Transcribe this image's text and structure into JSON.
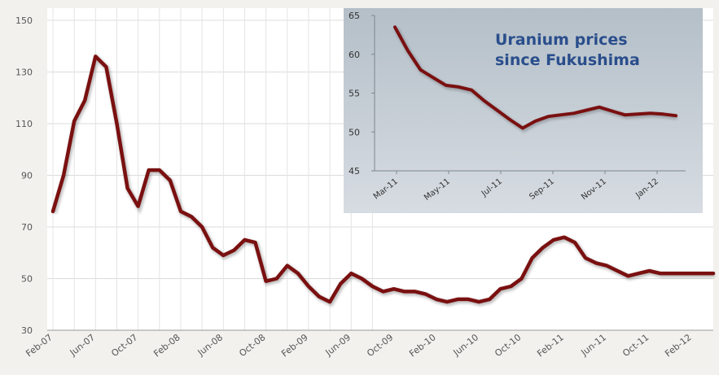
{
  "chart_data": [
    {
      "type": "line",
      "title": "",
      "xlabel": "",
      "ylabel": "",
      "ylim": [
        30,
        150
      ],
      "y_ticks": [
        30,
        50,
        70,
        90,
        110,
        130,
        150
      ],
      "x_tick_labels": [
        "Feb-07",
        "Jun-07",
        "Oct-07",
        "Feb-08",
        "Jun-08",
        "Oct-08",
        "Feb-09",
        "Jun-09",
        "Oct-09",
        "Feb-10",
        "Jun-10",
        "Oct-10",
        "Feb-11",
        "Jun-11",
        "Oct-11",
        "Feb-12"
      ],
      "grid": true,
      "series_color": "#7a1010",
      "series": [
        {
          "name": "",
          "values": [
            76,
            90,
            111,
            119,
            136,
            132,
            110,
            85,
            78,
            92,
            92,
            88,
            76,
            74,
            70,
            62,
            59,
            61,
            65,
            64,
            49,
            50,
            55,
            52,
            47,
            43,
            41,
            48,
            52,
            50,
            47,
            45,
            46,
            45,
            45,
            44,
            42,
            41,
            42,
            42,
            41,
            42,
            46,
            47,
            50,
            58,
            62,
            65,
            66,
            64,
            58,
            56,
            55,
            53,
            51,
            52,
            53,
            52,
            52,
            52,
            52,
            52,
            52
          ]
        }
      ]
    },
    {
      "type": "line",
      "title": "Uranium prices since Fukushima",
      "title_lines": [
        "Uranium prices",
        "since Fukushima"
      ],
      "xlabel": "",
      "ylabel": "",
      "ylim": [
        45,
        65
      ],
      "y_ticks": [
        45,
        50,
        55,
        60,
        65
      ],
      "x_tick_labels": [
        "Mar-11",
        "May-11",
        "Jul-11",
        "Sep-11",
        "Nov-11",
        "Jan-12"
      ],
      "grid": false,
      "series_color": "#7a1010",
      "title_color": "#2a4e8c",
      "series": [
        {
          "name": "",
          "values": [
            63.5,
            60.5,
            58,
            57,
            56,
            55.8,
            55.4,
            54,
            52.8,
            51.6,
            50.5,
            51.4,
            52,
            52.2,
            52.4,
            52.8,
            53.2,
            52.7,
            52.2,
            52.3,
            52.4,
            52.3,
            52.1
          ]
        }
      ]
    }
  ]
}
